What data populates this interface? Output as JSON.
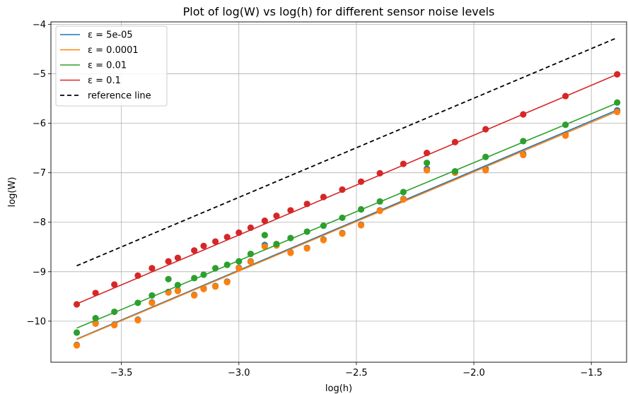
{
  "chart_data": {
    "type": "scatter",
    "title": "Plot of log(W) vs log(h) for different sensor noise levels",
    "xlabel": "log(h)",
    "ylabel": "log(W)",
    "xlim": [
      -3.8,
      -1.35
    ],
    "ylim": [
      -10.83,
      -3.95
    ],
    "xticks": [
      -3.5,
      -3.0,
      -2.5,
      -2.0,
      -1.5
    ],
    "xtick_labels": [
      "−3.5",
      "−3.0",
      "−2.5",
      "−2.0",
      "−1.5"
    ],
    "yticks": [
      -10,
      -9,
      -8,
      -7,
      -6,
      -5,
      -4
    ],
    "ytick_labels": [
      "−10",
      "−9",
      "−8",
      "−7",
      "−6",
      "−5",
      "−4"
    ],
    "grid": true,
    "legend_position": "upper-left",
    "x": [
      -3.69,
      -3.61,
      -3.53,
      -3.43,
      -3.37,
      -3.3,
      -3.26,
      -3.19,
      -3.15,
      -3.1,
      -3.05,
      -3.0,
      -2.95,
      -2.89,
      -2.84,
      -2.78,
      -2.71,
      -2.64,
      -2.56,
      -2.48,
      -2.4,
      -2.3,
      -2.2,
      -2.08,
      -1.95,
      -1.79,
      -1.61,
      -1.39
    ],
    "series": [
      {
        "name": "ε = 5e-05",
        "color": "#1f77b4",
        "fit": [
          [
            -3.69,
            -10.36
          ],
          [
            -1.39,
            -5.73
          ]
        ],
        "points": [
          -10.48,
          -10.04,
          -10.07,
          -9.97,
          -9.62,
          -9.41,
          -9.38,
          -9.47,
          -9.34,
          -9.29,
          -9.2,
          -8.92,
          -8.79,
          -8.46,
          -8.46,
          -8.61,
          -8.52,
          -8.35,
          -8.22,
          -8.05,
          -7.76,
          -7.53,
          -6.92,
          -6.98,
          -6.92,
          -6.62,
          -6.23,
          -5.74
        ]
      },
      {
        "name": "ε = 0.0001",
        "color": "#ff7f0e",
        "fit": [
          [
            -3.69,
            -10.37
          ],
          [
            -1.39,
            -5.76
          ]
        ],
        "points": [
          -10.49,
          -10.05,
          -10.08,
          -9.98,
          -9.63,
          -9.42,
          -9.39,
          -9.48,
          -9.35,
          -9.3,
          -9.21,
          -8.93,
          -8.8,
          -8.49,
          -8.47,
          -8.62,
          -8.53,
          -8.36,
          -8.23,
          -8.06,
          -7.77,
          -7.54,
          -6.95,
          -7.0,
          -6.95,
          -6.64,
          -6.25,
          -5.77
        ]
      },
      {
        "name": "ε = 0.01",
        "color": "#2ca02c",
        "fit": [
          [
            -3.69,
            -10.14
          ],
          [
            -1.39,
            -5.59
          ]
        ],
        "points": [
          -10.23,
          -9.94,
          -9.81,
          -9.63,
          -9.48,
          -9.15,
          -9.27,
          -9.13,
          -9.06,
          -8.93,
          -8.86,
          -8.79,
          -8.64,
          -8.26,
          -8.44,
          -8.32,
          -8.19,
          -8.07,
          -7.91,
          -7.74,
          -7.58,
          -7.39,
          -6.8,
          -6.97,
          -6.68,
          -6.36,
          -6.03,
          -5.58
        ]
      },
      {
        "name": "ε = 0.1",
        "color": "#d62728",
        "fit": [
          [
            -3.69,
            -9.65
          ],
          [
            -1.39,
            -5.01
          ]
        ],
        "points": [
          -9.66,
          -9.43,
          -9.26,
          -9.08,
          -8.93,
          -8.79,
          -8.72,
          -8.57,
          -8.48,
          -8.39,
          -8.3,
          -8.21,
          -8.11,
          -7.97,
          -7.87,
          -7.76,
          -7.63,
          -7.49,
          -7.34,
          -7.18,
          -7.01,
          -6.82,
          -6.6,
          -6.38,
          -6.12,
          -5.82,
          -5.45,
          -5.01
        ]
      },
      {
        "name": "reference line",
        "color": "#000000",
        "dashed": true,
        "fit": [
          [
            -3.69,
            -8.88
          ],
          [
            -1.39,
            -4.27
          ]
        ],
        "points": []
      }
    ]
  }
}
